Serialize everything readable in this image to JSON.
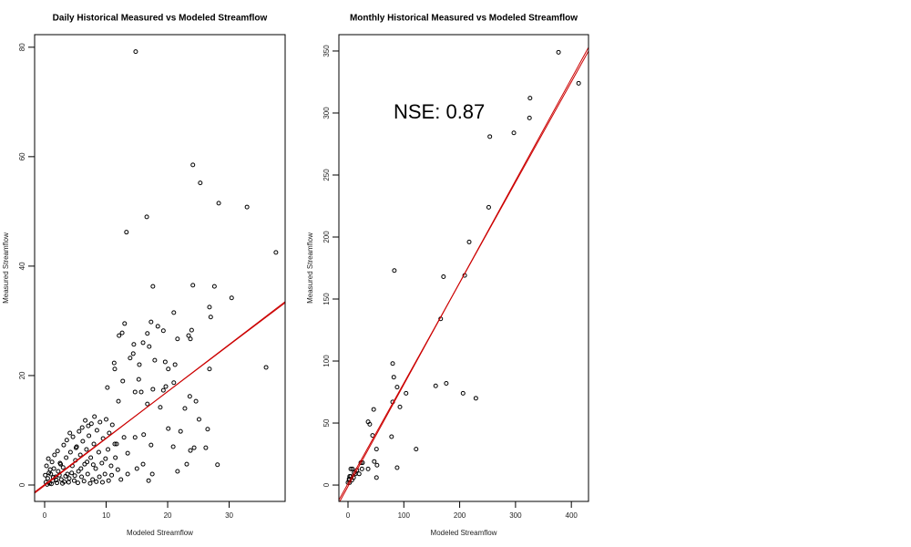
{
  "chart_data": [
    {
      "type": "scatter",
      "title": "Daily Historical Measured vs Modeled Streamflow",
      "x_label": "Modeled Streamflow",
      "y_label": "Measured Streamflow",
      "xlim": [
        -1.63,
        39.1
      ],
      "ylim": [
        -3.0,
        82.3
      ],
      "xticks": [
        0,
        10,
        20,
        30
      ],
      "yticks": [
        0,
        20,
        40,
        60,
        80
      ],
      "color": "#000000",
      "x": [
        14.8,
        24.1,
        25.3,
        28.3,
        32.9,
        16.6,
        13.3,
        37.6,
        36,
        17.6,
        24.1,
        27.6,
        30.4,
        26.8,
        27,
        21,
        13,
        12.6,
        12.1,
        17.3,
        18.4,
        19.3,
        16.7,
        17,
        16,
        23.9,
        23.4,
        23.7,
        21.6,
        14.5,
        14.4,
        13.9,
        11.3,
        11.4,
        15.4,
        17.9,
        19.6,
        20.1,
        21.2,
        26.8,
        15.3,
        12.7,
        10.2,
        14.7,
        15.7,
        17.6,
        19.3,
        19.7,
        21,
        12,
        16.7,
        18.8,
        23.6,
        24.6,
        22.8,
        25.1,
        26.5,
        20.1,
        22.1,
        20.9,
        24.3,
        26.2,
        23.7,
        28.1,
        23.1,
        21.6,
        17.5,
        16.9,
        15,
        16,
        13.5,
        14.7,
        12.9,
        11.7,
        16.1,
        17.3,
        13.5,
        0.2,
        0.5,
        0.8,
        1,
        1.3,
        1.5,
        1.8,
        2,
        2.2,
        2.5,
        2.7,
        3,
        3.2,
        3.5,
        3.7,
        4,
        4.2,
        4.5,
        4.8,
        5,
        5.2,
        5.5,
        5.8,
        6,
        6.2,
        6.5,
        6.8,
        7,
        7.2,
        7.5,
        7.8,
        8,
        8.3,
        8.5,
        8.8,
        9,
        9.3,
        9.5,
        9.8,
        10,
        10.3,
        10.5,
        10.8,
        11,
        11.5,
        0.3,
        0.6,
        0.9,
        1.2,
        1.6,
        2.1,
        2.6,
        3.1,
        3.6,
        4.1,
        4.6,
        5.1,
        5.6,
        6.1,
        6.6,
        7.1,
        7.6,
        8.1,
        0.1,
        0.4,
        0.7,
        1.1,
        1.4,
        1.9,
        2.4,
        2.9,
        3.4,
        3.9,
        4.4,
        4.9,
        5.4,
        5.9,
        6.4,
        6.9,
        7.4,
        7.9,
        8.4,
        8.9,
        9.4,
        9.9,
        10.4,
        10.9,
        11.4,
        11.9,
        12.4
      ],
      "values": [
        79.2,
        58.5,
        55.2,
        51.5,
        50.8,
        49,
        46.2,
        42.5,
        21.5,
        36.3,
        36.5,
        36.3,
        34.2,
        32.5,
        30.7,
        31.5,
        29.5,
        27.8,
        27.3,
        29.8,
        29,
        28.2,
        27.7,
        25.3,
        26,
        28.3,
        27.3,
        26.7,
        26.7,
        25.7,
        24,
        23.2,
        22.3,
        21.2,
        22,
        22.8,
        22.5,
        21.2,
        22,
        21.2,
        19.3,
        19,
        17.8,
        17,
        17,
        17.5,
        17.3,
        18,
        18.7,
        15.3,
        14.8,
        14.2,
        16.2,
        15.3,
        14,
        12,
        10.2,
        10.3,
        9.8,
        7,
        6.8,
        6.8,
        6.3,
        3.7,
        3.8,
        2.5,
        2,
        0.8,
        3,
        3.8,
        5.8,
        8.7,
        8.7,
        7.5,
        9.2,
        7.3,
        2,
        0.5,
        1.2,
        0.3,
        2,
        0.8,
        3,
        1.5,
        0.4,
        2.5,
        4,
        1,
        3.2,
        0.6,
        5,
        2,
        1.2,
        6,
        3.5,
        0.8,
        4.5,
        7,
        2.5,
        5.5,
        1.5,
        8,
        3.8,
        6.5,
        2,
        9,
        5,
        1,
        7.5,
        3,
        10,
        6,
        11.5,
        4,
        8.5,
        2,
        12,
        6.5,
        9.5,
        3.5,
        11,
        5,
        3.5,
        4.8,
        2.8,
        4.2,
        5.5,
        6.2,
        3.8,
        7.3,
        8.2,
        9.5,
        8.8,
        6.8,
        9.8,
        10.5,
        11.8,
        10.8,
        11.2,
        12.5,
        1.8,
        0.1,
        2.2,
        0.2,
        1.4,
        0.9,
        1.8,
        0.3,
        1.6,
        0.5,
        2.2,
        1.7,
        0.4,
        3,
        0.7,
        4.2,
        0.3,
        3.7,
        0.6,
        1.5,
        0.5,
        4.8,
        0.8,
        1.8,
        7.5,
        2.8,
        1
      ],
      "fit_lines": [
        {
          "color": "#cc0000",
          "x": [
            -1.63,
            39.1
          ],
          "values": [
            -1.3,
            33.3
          ]
        },
        {
          "color": "#cc0000",
          "x": [
            -1.63,
            39.1
          ],
          "values": [
            -1.5,
            33.5
          ]
        }
      ]
    },
    {
      "type": "scatter",
      "title": "Monthly Historical Measured vs Modeled Streamflow",
      "x_label": "Modeled Streamflow",
      "y_label": "Measured Streamflow",
      "annotation": "NSE: 0.87",
      "xlim": [
        -16.3,
        430.7
      ],
      "ylim": [
        -13.2,
        363.2
      ],
      "xticks": [
        0,
        100,
        200,
        300,
        400
      ],
      "yticks": [
        0,
        50,
        100,
        150,
        200,
        250,
        300,
        350
      ],
      "color": "#000000",
      "x": [
        377,
        413,
        326,
        325,
        297,
        254,
        252,
        217,
        209,
        83,
        171,
        166,
        80,
        82,
        88,
        104,
        80,
        93,
        157,
        176,
        206,
        229,
        122,
        46,
        36,
        39,
        78,
        44,
        51,
        47,
        52,
        88,
        51,
        36,
        25,
        26,
        20,
        16,
        11,
        8,
        3,
        2,
        0,
        2,
        5,
        10,
        13,
        5,
        23,
        3,
        7
      ],
      "values": [
        349,
        324,
        312,
        296,
        284,
        281,
        224,
        196,
        169,
        173,
        168,
        134,
        98,
        87,
        79,
        74,
        67,
        63,
        80,
        82,
        74,
        70,
        29,
        61,
        51,
        49,
        39,
        40,
        29,
        19,
        16,
        14,
        6,
        13,
        13,
        18,
        9,
        12,
        10,
        13,
        7,
        4,
        2,
        5,
        7,
        6,
        9,
        13,
        18,
        2,
        4
      ],
      "fit_lines": [
        {
          "color": "#cc0000",
          "x": [
            -14.7,
            430.7
          ],
          "values": [
            -13.2,
            352.9
          ]
        },
        {
          "color": "#cc0000",
          "x": [
            -16.3,
            430.7
          ],
          "values": [
            -12,
            350
          ]
        }
      ]
    }
  ]
}
